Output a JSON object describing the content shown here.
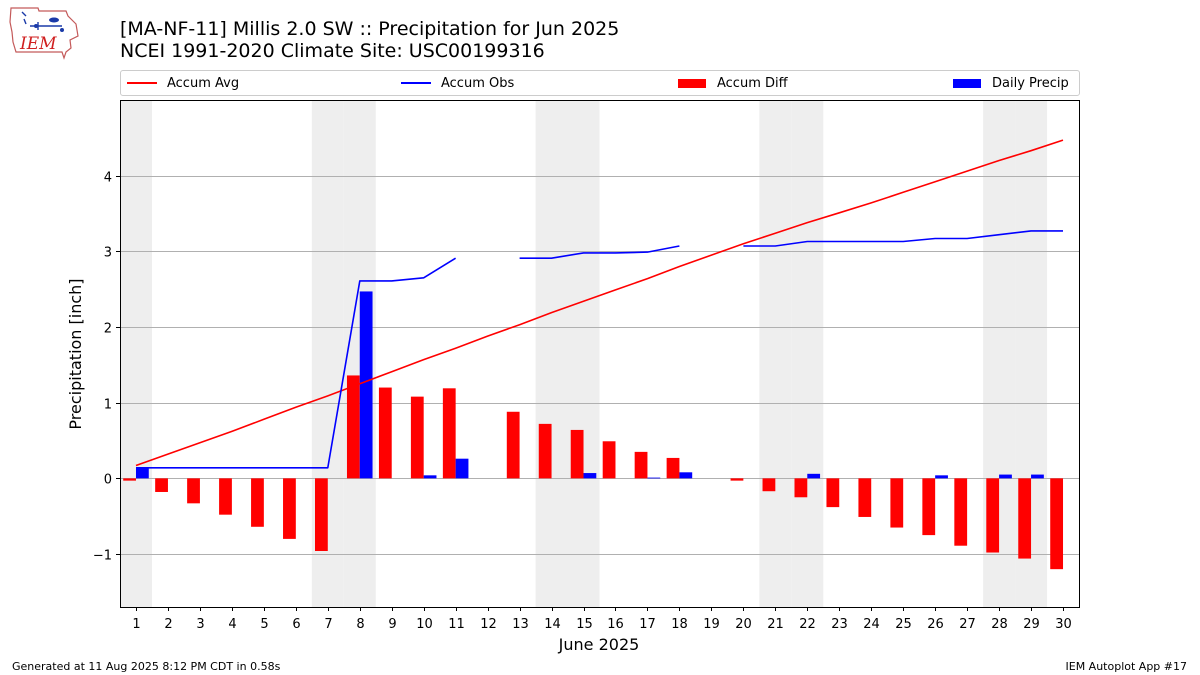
{
  "title_line1": "[MA-NF-11] Millis 2.0 SW :: Precipitation for Jun 2025",
  "title_line2": "NCEI 1991-2020 Climate Site: USC00199316",
  "logo_text": "IEM",
  "footer_left": "Generated at 11 Aug 2025 8:12 PM CDT in 0.58s",
  "footer_right": "IEM Autoplot App #17",
  "colors": {
    "avg": "#ff0000",
    "obs": "#0000ff",
    "diff": "#ff0000",
    "daily": "#0000ff",
    "weekend": "#eeeeee",
    "grid": "#b0b0b0"
  },
  "chart_data": {
    "type": "bar",
    "xlabel": "June 2025",
    "ylabel": "Precipitation [inch]",
    "ylim": [
      -1.7,
      5.0
    ],
    "yticks": [
      -1,
      0,
      1,
      2,
      3,
      4
    ],
    "grid": true,
    "legend_placement": "top",
    "x": [
      1,
      2,
      3,
      4,
      5,
      6,
      7,
      8,
      9,
      10,
      11,
      12,
      13,
      14,
      15,
      16,
      17,
      18,
      19,
      20,
      21,
      22,
      23,
      24,
      25,
      26,
      27,
      28,
      29,
      30
    ],
    "shaded_days": [
      1,
      7,
      8,
      14,
      15,
      21,
      22,
      28,
      29
    ],
    "series": [
      {
        "name": "Accum Avg",
        "kind": "line",
        "values": [
          0.17,
          0.32,
          0.47,
          0.62,
          0.78,
          0.94,
          1.09,
          1.25,
          1.41,
          1.57,
          1.72,
          1.88,
          2.03,
          2.19,
          2.34,
          2.49,
          2.64,
          2.8,
          2.95,
          3.1,
          3.24,
          3.38,
          3.51,
          3.64,
          3.78,
          3.92,
          4.06,
          4.2,
          4.33,
          4.47
        ]
      },
      {
        "name": "Accum Obs",
        "kind": "line",
        "values": [
          0.14,
          0.14,
          0.14,
          0.14,
          0.14,
          0.14,
          0.14,
          2.61,
          2.61,
          2.65,
          2.91,
          null,
          2.91,
          2.91,
          2.98,
          2.98,
          2.99,
          3.07,
          null,
          3.07,
          3.07,
          3.13,
          3.13,
          3.13,
          3.13,
          3.17,
          3.17,
          3.22,
          3.27,
          3.27
        ]
      },
      {
        "name": "Accum Diff",
        "kind": "bar",
        "values": [
          -0.03,
          -0.18,
          -0.33,
          -0.48,
          -0.64,
          -0.8,
          -0.96,
          1.36,
          1.2,
          1.08,
          1.19,
          null,
          0.88,
          0.72,
          0.64,
          0.49,
          0.35,
          0.27,
          null,
          -0.03,
          -0.17,
          -0.25,
          -0.38,
          -0.51,
          -0.65,
          -0.75,
          -0.89,
          -0.98,
          -1.06,
          -1.2
        ]
      },
      {
        "name": "Daily Precip",
        "kind": "bar",
        "values": [
          0.14,
          0,
          0,
          0,
          0,
          0,
          0,
          2.47,
          0,
          0.04,
          0.26,
          null,
          0,
          0,
          0.07,
          0,
          0.01,
          0.08,
          null,
          0,
          0,
          0.06,
          0,
          0,
          0,
          0.04,
          0,
          0.05,
          0.05,
          0
        ]
      }
    ]
  }
}
